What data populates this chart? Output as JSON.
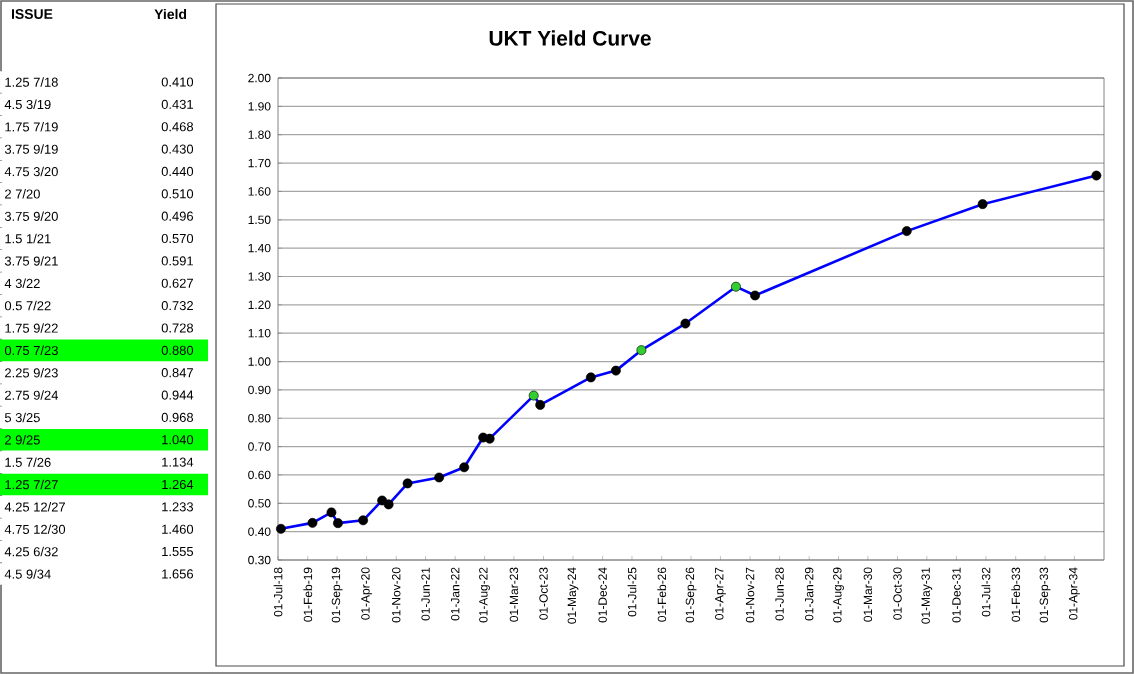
{
  "chart_data": [
    {
      "type": "other",
      "xlabel": "ISSUE",
      "ylabel": "Yield",
      "categories": [
        "1.25  7/18",
        "4.5  3/19",
        "1.75  7/19",
        "3.75  9/19",
        "4.75  3/20",
        "2  7/20",
        "3.75  9/20",
        "1.5  1/21",
        "3.75  9/21",
        "4  3/22",
        "0.5  7/22",
        "1.75  9/22",
        "0.75  7/23",
        "2.25  9/23",
        "2.75  9/24",
        "5  3/25",
        "2  9/25",
        "1.5  7/26",
        "1.25  7/27",
        "4.25  12/27",
        "4.75  12/30",
        "4.25  6/32",
        "4.5  9/34"
      ],
      "value_labels": [
        "0.410",
        "0.431",
        "0.468",
        "0.430",
        "0.440",
        "0.510",
        "0.496",
        "0.570",
        "0.591",
        "0.627",
        "0.732",
        "0.728",
        "0.880",
        "0.847",
        "0.944",
        "0.968",
        "1.040",
        "1.134",
        "1.264",
        "1.233",
        "1.460",
        "1.555",
        "1.656"
      ],
      "colors": [
        "#ffffff",
        "#ffffff",
        "#ffffff",
        "#ffffff",
        "#ffffff",
        "#ffffff",
        "#ffffff",
        "#ffffff",
        "#ffffff",
        "#ffffff",
        "#ffffff",
        "#ffffff",
        "#00ff00",
        "#ffffff",
        "#ffffff",
        "#ffffff",
        "#00ff00",
        "#ffffff",
        "#00ff00",
        "#ffffff",
        "#ffffff",
        "#ffffff",
        "#ffffff"
      ]
    },
    {
      "type": "line",
      "title": "UKT Yield Curve",
      "x": [
        "2018-07-22",
        "2019-03-07",
        "2019-07-22",
        "2019-09-07",
        "2020-03-07",
        "2020-07-22",
        "2020-09-07",
        "2021-01-22",
        "2021-09-07",
        "2022-03-07",
        "2022-07-22",
        "2022-09-07",
        "2023-07-22",
        "2023-09-07",
        "2024-09-07",
        "2025-03-07",
        "2025-09-07",
        "2026-07-22",
        "2027-07-22",
        "2027-12-07",
        "2030-12-07",
        "2032-06-07",
        "2034-09-07"
      ],
      "series": [
        {
          "color": "#0000ff",
          "values": [
            0.41,
            0.431,
            0.468,
            0.43,
            0.44,
            0.51,
            0.496,
            0.57,
            0.591,
            0.627,
            0.732,
            0.728,
            0.88,
            0.847,
            0.944,
            0.968,
            1.04,
            1.134,
            1.264,
            1.233,
            1.46,
            1.555,
            1.656
          ],
          "colors": [
            "#000000",
            "#000000",
            "#000000",
            "#000000",
            "#000000",
            "#000000",
            "#000000",
            "#000000",
            "#000000",
            "#000000",
            "#000000",
            "#000000",
            "#33cc33",
            "#000000",
            "#000000",
            "#000000",
            "#33cc33",
            "#000000",
            "#33cc33",
            "#000000",
            "#000000",
            "#000000",
            "#000000"
          ]
        }
      ],
      "marker": "circle",
      "line_style": "solid",
      "grid": "y",
      "xlim": [
        "2018-07-01",
        "2034-11-01"
      ],
      "xticks": [
        {
          "value": "2018-07-01",
          "label": "01-Jul-18"
        },
        {
          "value": "2019-02-01",
          "label": "01-Feb-19"
        },
        {
          "value": "2019-09-01",
          "label": "01-Sep-19"
        },
        {
          "value": "2020-04-01",
          "label": "01-Apr-20"
        },
        {
          "value": "2020-11-01",
          "label": "01-Nov-20"
        },
        {
          "value": "2021-06-01",
          "label": "01-Jun-21"
        },
        {
          "value": "2022-01-01",
          "label": "01-Jan-22"
        },
        {
          "value": "2022-08-01",
          "label": "01-Aug-22"
        },
        {
          "value": "2023-03-01",
          "label": "01-Mar-23"
        },
        {
          "value": "2023-10-01",
          "label": "01-Oct-23"
        },
        {
          "value": "2024-05-01",
          "label": "01-May-24"
        },
        {
          "value": "2024-12-01",
          "label": "01-Dec-24"
        },
        {
          "value": "2025-07-01",
          "label": "01-Jul-25"
        },
        {
          "value": "2026-02-01",
          "label": "01-Feb-26"
        },
        {
          "value": "2026-09-01",
          "label": "01-Sep-26"
        },
        {
          "value": "2027-04-01",
          "label": "01-Apr-27"
        },
        {
          "value": "2027-11-01",
          "label": "01-Nov-27"
        },
        {
          "value": "2028-06-01",
          "label": "01-Jun-28"
        },
        {
          "value": "2029-01-01",
          "label": "01-Jan-29"
        },
        {
          "value": "2029-08-01",
          "label": "01-Aug-29"
        },
        {
          "value": "2030-03-01",
          "label": "01-Mar-30"
        },
        {
          "value": "2030-10-01",
          "label": "01-Oct-30"
        },
        {
          "value": "2031-05-01",
          "label": "01-May-31"
        },
        {
          "value": "2031-12-01",
          "label": "01-Dec-31"
        },
        {
          "value": "2032-07-01",
          "label": "01-Jul-32"
        },
        {
          "value": "2033-02-01",
          "label": "01-Feb-33"
        },
        {
          "value": "2033-09-01",
          "label": "01-Sep-33"
        },
        {
          "value": "2034-04-01",
          "label": "01-Apr-34"
        }
      ],
      "ylim": [
        0.3,
        2.0
      ],
      "yticks": [
        {
          "value": 0.3,
          "label": "0.30"
        },
        {
          "value": 0.4,
          "label": "0.40"
        },
        {
          "value": 0.5,
          "label": "0.50"
        },
        {
          "value": 0.6,
          "label": "0.60"
        },
        {
          "value": 0.7,
          "label": "0.70"
        },
        {
          "value": 0.8,
          "label": "0.80"
        },
        {
          "value": 0.9,
          "label": "0.90"
        },
        {
          "value": 1.0,
          "label": "1.00"
        },
        {
          "value": 1.1,
          "label": "1.10"
        },
        {
          "value": 1.2,
          "label": "1.20"
        },
        {
          "value": 1.3,
          "label": "1.30"
        },
        {
          "value": 1.4,
          "label": "1.40"
        },
        {
          "value": 1.5,
          "label": "1.50"
        },
        {
          "value": 1.6,
          "label": "1.60"
        },
        {
          "value": 1.7,
          "label": "1.70"
        },
        {
          "value": 1.8,
          "label": "1.80"
        },
        {
          "value": 1.9,
          "label": "1.90"
        },
        {
          "value": 2.0,
          "label": "2.00"
        }
      ]
    }
  ]
}
